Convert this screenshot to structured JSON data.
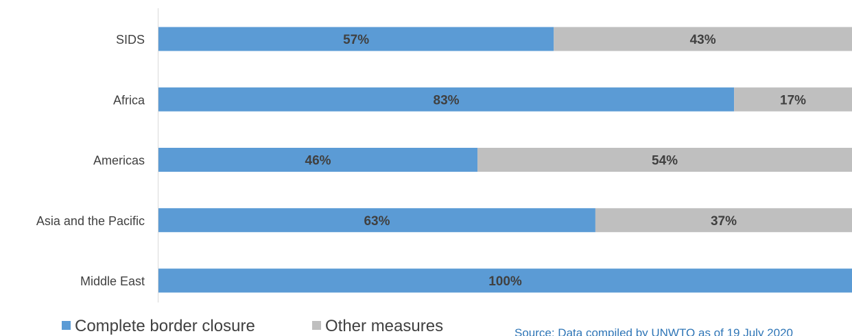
{
  "chart_data": {
    "type": "bar",
    "orientation": "horizontal",
    "stacked": true,
    "percent_stacked": true,
    "categories": [
      "SIDS",
      "Africa",
      "Americas",
      "Asia and the Pacific",
      "Middle East"
    ],
    "series": [
      {
        "name": "Complete border closure",
        "color": "#5b9bd5",
        "values": [
          57,
          83,
          46,
          63,
          100
        ],
        "labels": [
          "57%",
          "83%",
          "46%",
          "63%",
          "100%"
        ]
      },
      {
        "name": "Other measures",
        "color": "#bfbfbf",
        "values": [
          43,
          17,
          54,
          37,
          0
        ],
        "labels": [
          "43%",
          "17%",
          "54%",
          "37%",
          ""
        ]
      }
    ],
    "xlim": [
      0,
      100
    ],
    "grid": false,
    "legend": "bottom-left"
  },
  "source": "Source: Data compiled by UNWTO as of 19 July 2020"
}
